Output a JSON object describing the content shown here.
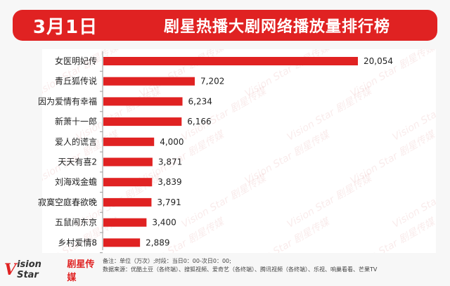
{
  "header": {
    "date": "3月1日",
    "title": "剧星热播大剧网络播放量排行榜"
  },
  "chart_data": {
    "type": "bar",
    "orientation": "horizontal",
    "categories": [
      "女医明妃传",
      "青丘狐传说",
      "因为爱情有幸福",
      "新萧十一郎",
      "爱人的谎言",
      "天天有喜2",
      "刘海戏金蟾",
      "寂寞空庭春欲晚",
      "五鼠闹东京",
      "乡村爱情8"
    ],
    "values": [
      20054,
      7202,
      6234,
      6166,
      4000,
      3871,
      3839,
      3791,
      3400,
      2889
    ],
    "value_labels": [
      "20,054",
      "7,202",
      "6,234",
      "6,166",
      "4,000",
      "3,871",
      "3,839",
      "3,791",
      "3,400",
      "2,889"
    ],
    "xlim": [
      0,
      20054
    ],
    "bar_color": "#e02222",
    "grid": false,
    "legend": "none"
  },
  "footer": {
    "logo_mark": "V",
    "logo_text": "ision Star",
    "logo_cn": "剧星传媒",
    "note_line1": "备注：单位（万次）;时段：当日0：00-次日0：00;",
    "note_line2": "数据来源：优酷土豆（各终端）、搜狐视频、爱奇艺（各终端）、腾讯视频（各终端）、乐视、响巢看看、芒果TV"
  },
  "watermark_text": "Vision Star 剧星传媒"
}
